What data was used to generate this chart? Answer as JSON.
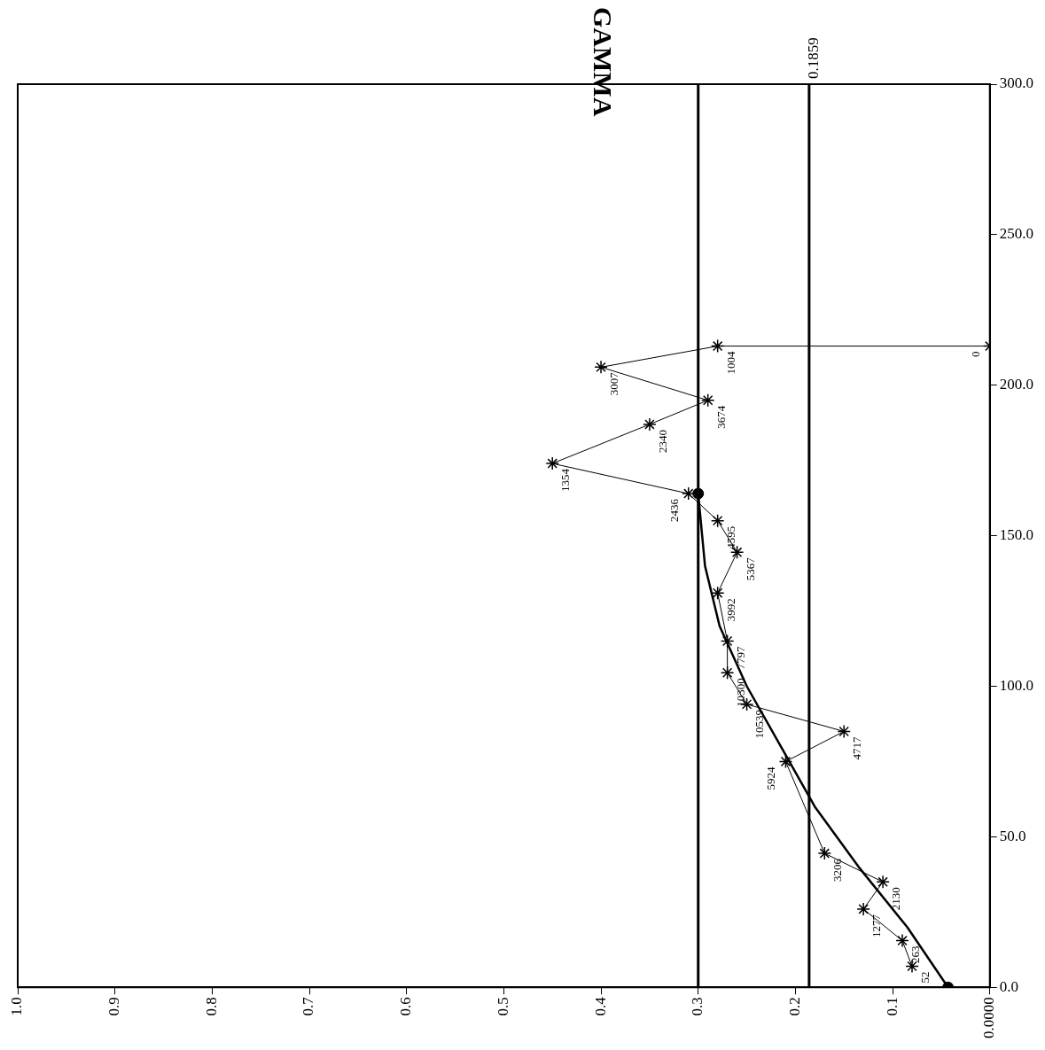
{
  "chart_data": {
    "type": "line",
    "title": "GAMMA",
    "xlim": [
      1,
      0
    ],
    "xticks": [
      {
        "value": 1,
        "label": "1.0"
      },
      {
        "value": 0.9,
        "label": "0.9"
      },
      {
        "value": 0.8,
        "label": "0.8"
      },
      {
        "value": 0.7,
        "label": "0.7"
      },
      {
        "value": 0.6,
        "label": "0.6"
      },
      {
        "value": 0.5,
        "label": "0.5"
      },
      {
        "value": 0.4,
        "label": "0.4"
      },
      {
        "value": 0.3,
        "label": "0.3"
      },
      {
        "value": 0.2,
        "label": "0.2"
      },
      {
        "value": 0.1,
        "label": "0.1"
      },
      {
        "value": 0,
        "label": "0.0000"
      }
    ],
    "ylim": [
      0,
      300
    ],
    "yticks": [
      {
        "value": 0,
        "label": "0.0"
      },
      {
        "value": 50,
        "label": "50.0"
      },
      {
        "value": 100,
        "label": "100.0"
      },
      {
        "value": 150,
        "label": "150.0"
      },
      {
        "value": 200,
        "label": "200.0"
      },
      {
        "value": 250,
        "label": "250.0"
      },
      {
        "value": 300,
        "label": "300.0"
      }
    ],
    "grid": false,
    "legend": false,
    "ref_lines": [
      {
        "axis": "x",
        "value": 0.1859,
        "label": "0.1859"
      },
      {
        "axis": "x",
        "value": 0.3
      }
    ],
    "annotations": [
      {
        "text": "52",
        "x": 0.08,
        "y": 7
      },
      {
        "text": "263",
        "x": 0.09,
        "y": 15.5
      },
      {
        "text": "1277",
        "x": 0.13,
        "y": 26
      },
      {
        "text": "2130",
        "x": 0.11,
        "y": 35
      },
      {
        "text": "3206",
        "x": 0.17,
        "y": 44.5
      },
      {
        "text": "5924",
        "x": 0.21,
        "y": 75
      },
      {
        "text": "4717",
        "x": 0.15,
        "y": 85
      },
      {
        "text": "10539",
        "x": 0.25,
        "y": 94
      },
      {
        "text": "10300",
        "x": 0.27,
        "y": 104.5
      },
      {
        "text": "7797",
        "x": 0.27,
        "y": 115
      },
      {
        "text": "3992",
        "x": 0.28,
        "y": 131
      },
      {
        "text": "5367",
        "x": 0.26,
        "y": 144.5
      },
      {
        "text": "4595",
        "x": 0.28,
        "y": 155
      },
      {
        "text": "2436",
        "x": 0.31,
        "y": 164
      },
      {
        "text": "1354",
        "x": 0.45,
        "y": 174
      },
      {
        "text": "2340",
        "x": 0.35,
        "y": 187
      },
      {
        "text": "3674",
        "x": 0.29,
        "y": 195
      },
      {
        "text": "3007",
        "x": 0.4,
        "y": 206
      },
      {
        "text": "1004",
        "x": 0.28,
        "y": 213
      },
      {
        "text": "0",
        "x": 0,
        "y": 213
      }
    ],
    "series": [
      {
        "type": "line",
        "color": "#000000",
        "marker": "cross",
        "x": [
          0.08,
          0.09,
          0.13,
          0.11,
          0.17,
          0.21,
          0.15,
          0.25,
          0.27,
          0.27,
          0.28,
          0.26,
          0.28,
          0.31,
          0.45,
          0.35,
          0.29,
          0.4,
          0.28,
          0
        ],
        "values": [
          7,
          15.5,
          26,
          35,
          44.5,
          75,
          85,
          94,
          104.5,
          115,
          131,
          144.5,
          155,
          164,
          174,
          187,
          195,
          206,
          213,
          213
        ]
      },
      {
        "type": "line",
        "color": "#000000",
        "marker": "none",
        "x": [
          0.043,
          0.085,
          0.135,
          0.18,
          0.215,
          0.25,
          0.278,
          0.293,
          0.3
        ],
        "values": [
          0,
          20,
          40,
          60,
          80,
          100,
          120,
          140,
          164
        ]
      },
      {
        "type": "scatter",
        "color": "#000000",
        "marker": "circle",
        "x": [
          0.043,
          0.3
        ],
        "values": [
          0,
          164
        ]
      }
    ]
  }
}
